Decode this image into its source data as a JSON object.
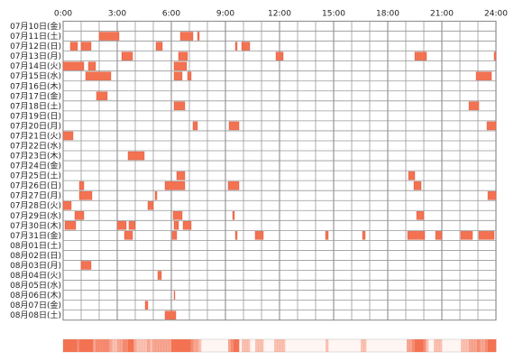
{
  "chart_data": {
    "type": "timeline",
    "color": "#f27252",
    "xlim": [
      0,
      24
    ],
    "xticks": [
      {
        "value": 0,
        "label": "0:00"
      },
      {
        "value": 3,
        "label": "3:00"
      },
      {
        "value": 6,
        "label": "6:00"
      },
      {
        "value": 9,
        "label": "9:00"
      },
      {
        "value": 12,
        "label": "12:00"
      },
      {
        "value": 15,
        "label": "15:00"
      },
      {
        "value": 18,
        "label": "18:00"
      },
      {
        "value": 21,
        "label": "21:00"
      },
      {
        "value": 24,
        "label": "24:00"
      }
    ],
    "categories": [
      "07月10日(金)",
      "07月11日(土)",
      "07月12日(日)",
      "07月13日(月)",
      "07月14日(火)",
      "07月15日(水)",
      "07月16日(木)",
      "07月17日(金)",
      "07月18日(土)",
      "07月19日(日)",
      "07月20日(月)",
      "07月21日(火)",
      "07月22日(水)",
      "07月23日(木)",
      "07月24日(金)",
      "07月25日(土)",
      "07月26日(日)",
      "07月27日(月)",
      "07月28日(火)",
      "07月29日(水)",
      "07月30日(木)",
      "07月31日(金)",
      "08月01日(土)",
      "08月02日(日)",
      "08月03日(月)",
      "08月04日(火)",
      "08月05日(水)",
      "08月06日(木)",
      "08月07日(金)",
      "08月08日(土)"
    ],
    "values": [
      [],
      [
        [
          2.0,
          3.1
        ],
        [
          6.5,
          7.2
        ],
        [
          7.45,
          7.55
        ]
      ],
      [
        [
          0.4,
          0.8
        ],
        [
          1.0,
          1.55
        ],
        [
          5.15,
          5.5
        ],
        [
          9.55,
          9.65
        ],
        [
          9.9,
          10.35
        ]
      ],
      [
        [
          3.25,
          3.85
        ],
        [
          6.4,
          6.9
        ],
        [
          11.8,
          12.2
        ],
        [
          19.5,
          20.15
        ],
        [
          23.9,
          24
        ]
      ],
      [
        [
          0,
          1.15
        ],
        [
          1.4,
          1.8
        ],
        [
          6.15,
          6.85
        ]
      ],
      [
        [
          1.25,
          2.65
        ],
        [
          6.15,
          6.6
        ],
        [
          6.9,
          7.1
        ],
        [
          22.9,
          23.75
        ]
      ],
      [],
      [
        [
          1.85,
          2.45
        ]
      ],
      [
        [
          6.15,
          6.75
        ],
        [
          22.5,
          23.05
        ]
      ],
      [],
      [
        [
          7.2,
          7.45
        ],
        [
          9.2,
          9.75
        ],
        [
          23.5,
          24
        ]
      ],
      [
        [
          0,
          0.55
        ]
      ],
      [],
      [
        [
          3.6,
          4.5
        ]
      ],
      [],
      [
        [
          6.3,
          6.75
        ],
        [
          19.15,
          19.5
        ]
      ],
      [
        [
          0.9,
          1.15
        ],
        [
          5.65,
          6.75
        ],
        [
          9.15,
          9.75
        ],
        [
          19.45,
          19.85
        ]
      ],
      [
        [
          0.9,
          1.6
        ],
        [
          5.1,
          5.2
        ],
        [
          23.55,
          24
        ]
      ],
      [
        [
          0,
          0.45
        ],
        [
          4.7,
          5.0
        ]
      ],
      [
        [
          0.65,
          1.15
        ],
        [
          6.1,
          6.6
        ],
        [
          9.4,
          9.5
        ],
        [
          19.6,
          20.0
        ]
      ],
      [
        [
          0.1,
          0.7
        ],
        [
          3.0,
          3.5
        ],
        [
          3.65,
          4.0
        ],
        [
          6.15,
          6.4
        ],
        [
          6.65,
          7.1
        ]
      ],
      [
        [
          3.4,
          3.85
        ],
        [
          6.05,
          6.3
        ],
        [
          9.55,
          9.65
        ],
        [
          10.65,
          11.1
        ],
        [
          14.55,
          14.7
        ],
        [
          16.6,
          16.75
        ],
        [
          19.1,
          20.05
        ],
        [
          20.65,
          21.0
        ],
        [
          22.05,
          22.7
        ],
        [
          23.05,
          23.9
        ]
      ],
      [],
      [],
      [
        [
          1.0,
          1.55
        ]
      ],
      [
        [
          5.25,
          5.45
        ]
      ],
      [],
      [
        [
          6.15,
          6.2
        ]
      ],
      [
        [
          4.55,
          4.7
        ]
      ],
      [
        [
          5.65,
          6.25
        ]
      ]
    ]
  }
}
